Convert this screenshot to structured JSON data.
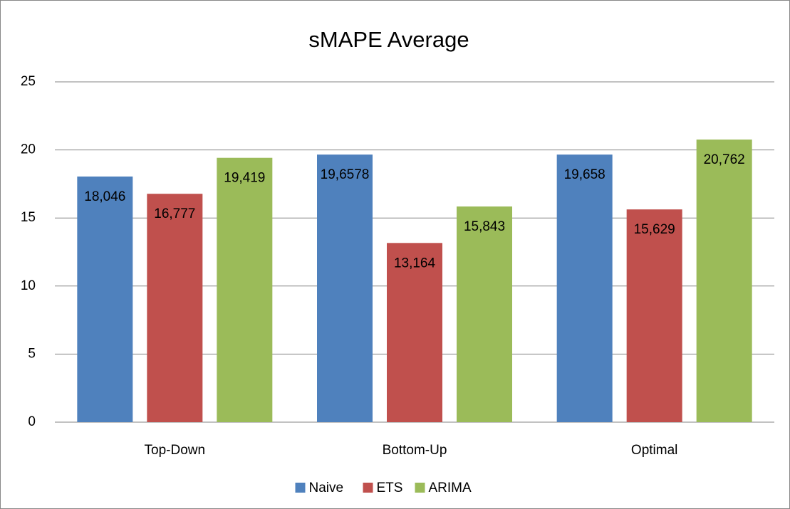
{
  "chart_data": {
    "type": "bar",
    "title": "sMAPE Average",
    "categories": [
      "Top-Down",
      "Bottom-Up",
      "Optimal"
    ],
    "series": [
      {
        "name": "Naive",
        "color": "#4f81bd",
        "values": [
          18.046,
          19.6578,
          19.658
        ],
        "value_labels": [
          "18,046",
          "19,6578",
          "19,658"
        ]
      },
      {
        "name": "ETS",
        "color": "#c0504d",
        "values": [
          16.777,
          13.164,
          15.629
        ],
        "value_labels": [
          "16,777",
          "13,164",
          "15,629"
        ]
      },
      {
        "name": "ARIMA",
        "color": "#9bbb59",
        "values": [
          19.419,
          15.843,
          20.762
        ],
        "value_labels": [
          "19,419",
          "15,843",
          "20,762"
        ]
      }
    ],
    "ylim": [
      0,
      25
    ],
    "yticks": [
      0,
      5,
      10,
      15,
      20,
      25
    ],
    "grid": true,
    "legend": "bottom"
  }
}
